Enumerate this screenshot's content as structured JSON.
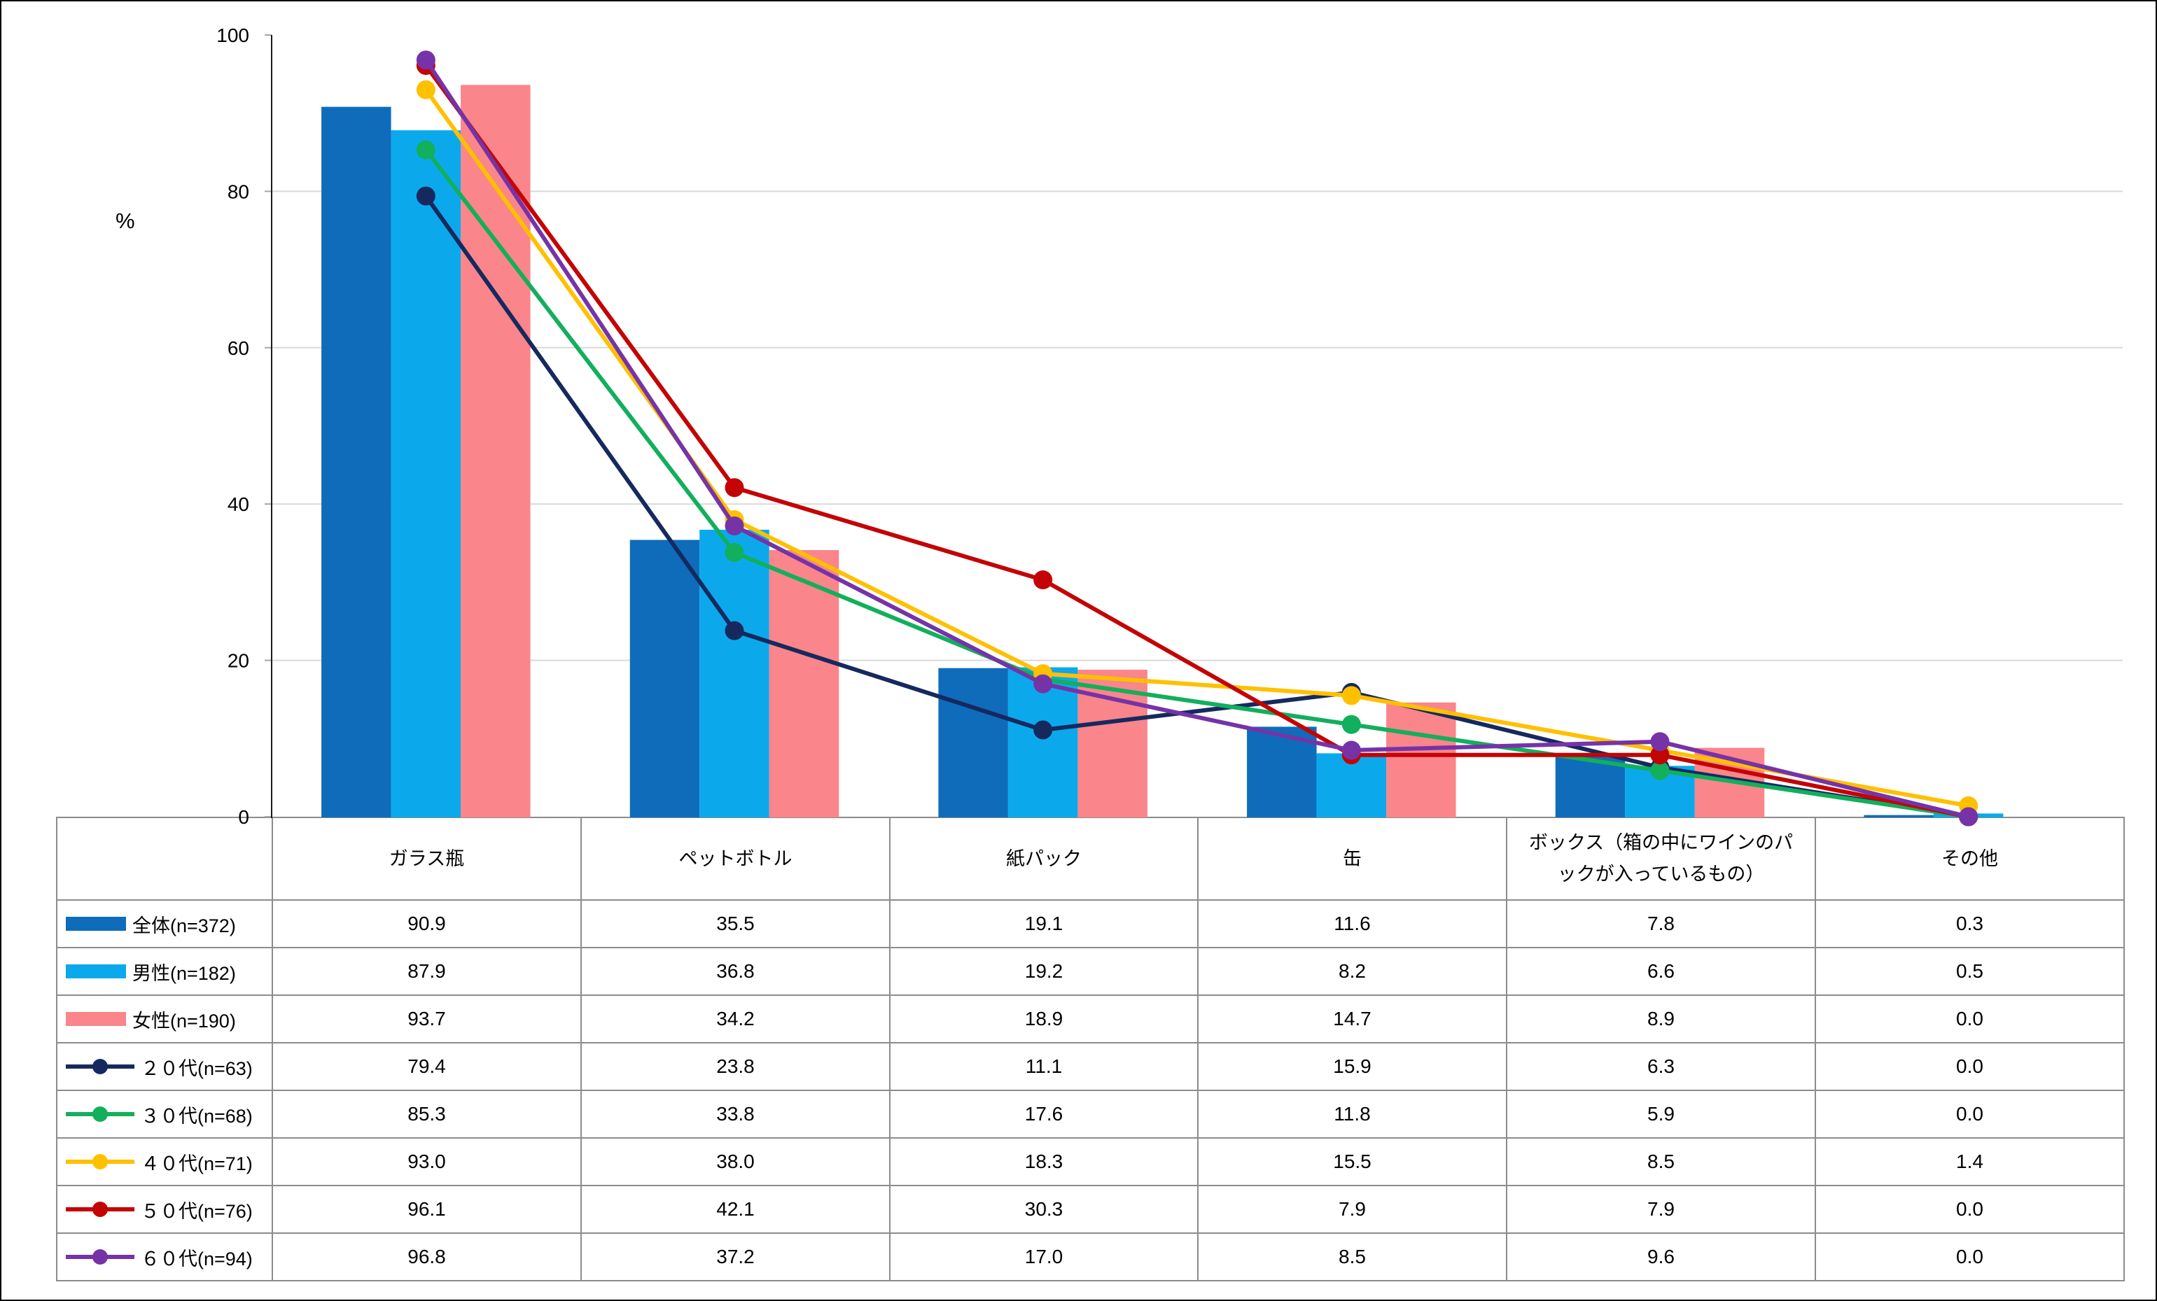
{
  "chart_data": {
    "type": "combo",
    "title": "",
    "xlabel": "",
    "ylabel": "%",
    "ylim": [
      0,
      100
    ],
    "yticks": [
      0,
      20,
      40,
      60,
      80,
      100
    ],
    "grid": "horizontal",
    "legend_position": "table-left-column",
    "categories": [
      "ガラス瓶",
      "ペットボトル",
      "紙パック",
      "缶",
      "ボックス（箱の中にワインのパックが入っているもの）",
      "その他"
    ],
    "series": [
      {
        "name": "全体(n=372)",
        "type": "bar",
        "color": "#0E6CBB",
        "values": [
          90.9,
          35.5,
          19.1,
          11.6,
          7.8,
          0.3
        ]
      },
      {
        "name": "男性(n=182)",
        "type": "bar",
        "color": "#0BA9EC",
        "values": [
          87.9,
          36.8,
          19.2,
          8.2,
          6.6,
          0.5
        ]
      },
      {
        "name": "女性(n=190)",
        "type": "bar",
        "color": "#FA858A",
        "values": [
          93.7,
          34.2,
          18.9,
          14.7,
          8.9,
          0.0
        ]
      },
      {
        "name": "２０代(n=63)",
        "type": "line",
        "color": "#16295F",
        "values": [
          79.4,
          23.8,
          11.1,
          15.9,
          6.3,
          0.0
        ]
      },
      {
        "name": "３０代(n=68)",
        "type": "line",
        "color": "#12AF5C",
        "values": [
          85.3,
          33.8,
          17.6,
          11.8,
          5.9,
          0.0
        ]
      },
      {
        "name": "４０代(n=71)",
        "type": "line",
        "color": "#FFC000",
        "values": [
          93.0,
          38.0,
          18.3,
          15.5,
          8.5,
          1.4
        ]
      },
      {
        "name": "５０代(n=76)",
        "type": "line",
        "color": "#C40404",
        "values": [
          96.1,
          42.1,
          30.3,
          7.9,
          7.9,
          0.0
        ]
      },
      {
        "name": "６０代(n=94)",
        "type": "line",
        "color": "#7633A8",
        "values": [
          96.8,
          37.2,
          17.0,
          8.5,
          9.6,
          0.0
        ]
      }
    ],
    "colors": {
      "gridline": "#D9D9D9",
      "tick": "#A6A6A6",
      "y_axis": "#1A1A1A",
      "table_border": "#8C8C8C"
    }
  }
}
